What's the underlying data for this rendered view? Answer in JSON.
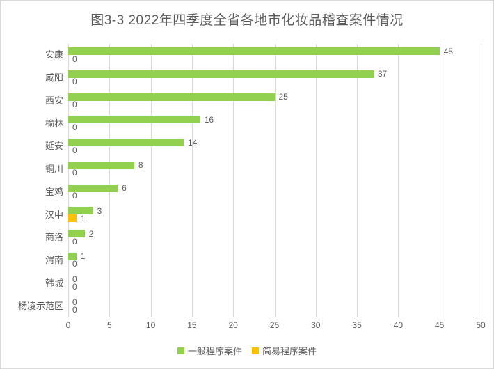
{
  "title": "图3-3 2022年四季度全省各地市化妆品稽查案件情况",
  "colors": {
    "series_general": "#92D050",
    "series_simple": "#FFC000",
    "gridline": "#D9D9D9",
    "text": "#595959",
    "border": "#D9D9D9",
    "background": "#FFFFFF"
  },
  "legend": [
    {
      "label": "一般程序案件",
      "color": "#92D050"
    },
    {
      "label": "简易程序案件",
      "color": "#FFC000"
    }
  ],
  "chart_data": {
    "type": "bar",
    "orientation": "horizontal",
    "title": "图3-3 2022年四季度全省各地市化妆品稽查案件情况",
    "categories": [
      "安康",
      "咸阳",
      "西安",
      "榆林",
      "延安",
      "铜川",
      "宝鸡",
      "汉中",
      "商洛",
      "渭南",
      "韩城",
      "杨凌示范区"
    ],
    "series": [
      {
        "name": "一般程序案件",
        "color": "#92D050",
        "values": [
          45,
          37,
          25,
          16,
          14,
          8,
          6,
          3,
          2,
          1,
          0,
          0
        ]
      },
      {
        "name": "简易程序案件",
        "color": "#FFC000",
        "values": [
          0,
          0,
          0,
          0,
          0,
          0,
          0,
          1,
          0,
          0,
          0,
          0
        ]
      }
    ],
    "xlabel": "",
    "ylabel": "",
    "xlim": [
      0,
      50
    ],
    "xticks": [
      0,
      5,
      10,
      15,
      20,
      25,
      30,
      35,
      40,
      45,
      50
    ],
    "grid": "vertical",
    "data_labels": true,
    "legend_position": "bottom"
  }
}
